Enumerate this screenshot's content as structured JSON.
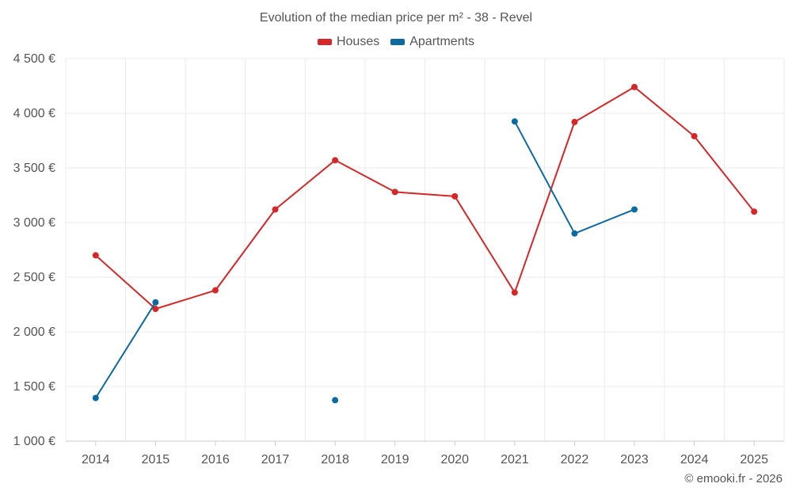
{
  "chart_data": {
    "type": "line",
    "title": "Evolution of the median price per m² - 38 - Revel",
    "categories": [
      "2014",
      "2015",
      "2016",
      "2017",
      "2018",
      "2019",
      "2020",
      "2021",
      "2022",
      "2023",
      "2024",
      "2025"
    ],
    "ylim": [
      1000,
      4500
    ],
    "yticks": [
      1000,
      1500,
      2000,
      2500,
      3000,
      3500,
      4000,
      4500
    ],
    "ytick_labels": [
      "1 000 €",
      "1 500 €",
      "2 000 €",
      "2 500 €",
      "3 000 €",
      "3 500 €",
      "4 000 €",
      "4 500 €"
    ],
    "grid": true,
    "legend_position": "top-center",
    "series": [
      {
        "name": "Houses",
        "color": "#d62728",
        "values": [
          2700,
          2210,
          2380,
          3120,
          3570,
          3280,
          3240,
          2360,
          3920,
          4240,
          3790,
          3100
        ]
      },
      {
        "name": "Apartments",
        "color": "#0b6aa2",
        "values": [
          1395,
          2270,
          null,
          null,
          1375,
          null,
          null,
          3925,
          2900,
          3120,
          null,
          null
        ]
      }
    ]
  },
  "footer": {
    "credit": "© emooki.fr - 2026"
  }
}
